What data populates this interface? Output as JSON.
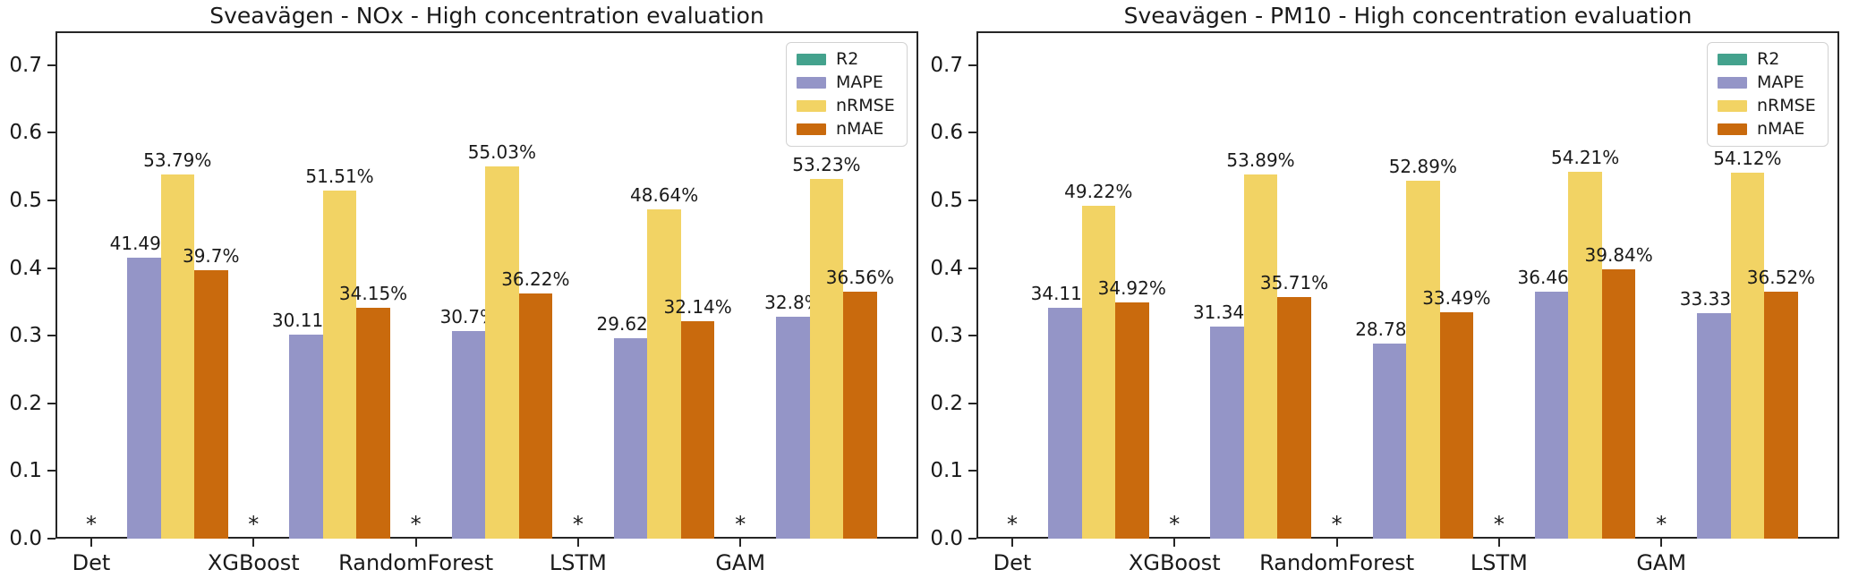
{
  "figure": {
    "background": "#ffffff",
    "axis_color": "#262626",
    "null_marker": "*"
  },
  "legend": {
    "position": "top-right-inside",
    "items": [
      {
        "label": "R2",
        "color": "#44A28D"
      },
      {
        "label": "MAPE",
        "color": "#9495C7"
      },
      {
        "label": "nRMSE",
        "color": "#F2D364"
      },
      {
        "label": "nMAE",
        "color": "#C96A0D"
      }
    ]
  },
  "y_axis": {
    "tick_labels": [
      "0.0",
      "0.1",
      "0.2",
      "0.3",
      "0.4",
      "0.5",
      "0.6",
      "0.7"
    ],
    "tick_values": [
      0.0,
      0.1,
      0.2,
      0.3,
      0.4,
      0.5,
      0.6,
      0.7
    ],
    "display_max": 0.75,
    "grid": false
  },
  "chart_data": [
    {
      "type": "bar",
      "title": "Sveavägen - NOx - High concentration evaluation",
      "categories": [
        "Det",
        "XGBoost",
        "RandomForest",
        "LSTM",
        "GAM"
      ],
      "ylim": [
        0,
        0.75
      ],
      "legend_position": "upper right",
      "series": [
        {
          "name": "R2",
          "color": "#44A28D",
          "values": [
            null,
            null,
            null,
            null,
            null
          ],
          "labels": [
            "*",
            "*",
            "*",
            "*",
            "*"
          ]
        },
        {
          "name": "MAPE",
          "color": "#9495C7",
          "values": [
            0.4149,
            0.3011,
            0.307,
            0.2962,
            0.328
          ],
          "labels": [
            "41.49%",
            "30.11%",
            "30.7%",
            "29.62%",
            "32.8%"
          ]
        },
        {
          "name": "nRMSE",
          "color": "#F2D364",
          "values": [
            0.5379,
            0.5151,
            0.5503,
            0.4864,
            0.5323
          ],
          "labels": [
            "53.79%",
            "51.51%",
            "55.03%",
            "48.64%",
            "53.23%"
          ]
        },
        {
          "name": "nMAE",
          "color": "#C96A0D",
          "values": [
            0.397,
            0.3415,
            0.3622,
            0.3214,
            0.3656
          ],
          "labels": [
            "39.7%",
            "34.15%",
            "36.22%",
            "32.14%",
            "36.56%"
          ]
        }
      ]
    },
    {
      "type": "bar",
      "title": "Sveavägen - PM10 - High concentration evaluation",
      "categories": [
        "Det",
        "XGBoost",
        "RandomForest",
        "LSTM",
        "GAM"
      ],
      "ylim": [
        0,
        0.75
      ],
      "legend_position": "upper right",
      "series": [
        {
          "name": "R2",
          "color": "#44A28D",
          "values": [
            null,
            null,
            null,
            null,
            null
          ],
          "labels": [
            "*",
            "*",
            "*",
            "*",
            "*"
          ]
        },
        {
          "name": "MAPE",
          "color": "#9495C7",
          "values": [
            0.3411,
            0.3134,
            0.2878,
            0.3646,
            0.3333
          ],
          "labels": [
            "34.11%",
            "31.34%",
            "28.78%",
            "36.46%",
            "33.33%"
          ]
        },
        {
          "name": "nRMSE",
          "color": "#F2D364",
          "values": [
            0.4922,
            0.5389,
            0.5289,
            0.5421,
            0.5412
          ],
          "labels": [
            "49.22%",
            "53.89%",
            "52.89%",
            "54.21%",
            "54.12%"
          ]
        },
        {
          "name": "nMAE",
          "color": "#C96A0D",
          "values": [
            0.3492,
            0.3571,
            0.3349,
            0.3984,
            0.3652
          ],
          "labels": [
            "34.92%",
            "35.71%",
            "33.49%",
            "39.84%",
            "36.52%"
          ]
        }
      ]
    }
  ]
}
